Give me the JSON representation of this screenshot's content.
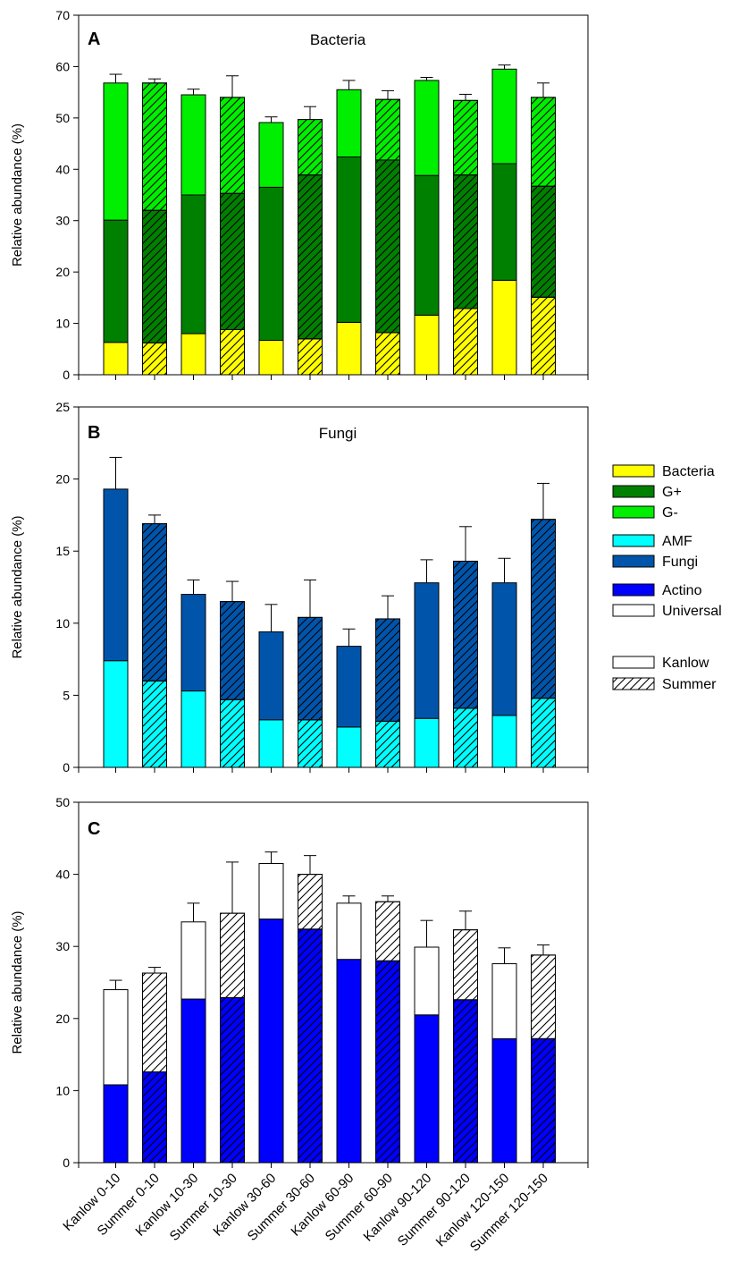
{
  "chart_data": [
    {
      "type": "bar",
      "stacked": true,
      "panel": "A",
      "title": "Bacteria",
      "ylabel": "Relative abundance (%)",
      "ylim": [
        0,
        70
      ],
      "yticks": [
        0,
        10,
        20,
        30,
        40,
        50,
        60,
        70
      ],
      "categories": [
        "Kanlow 0-10",
        "Summer 0-10",
        "Kanlow 10-30",
        "Summer 10-30",
        "Kanlow 30-60",
        "Summer 30-60",
        "Kanlow 60-90",
        "Summer 60-90",
        "Kanlow 90-120",
        "Summer 90-120",
        "Kanlow 120-150",
        "Summer 120-150"
      ],
      "hatched": [
        false,
        true,
        false,
        true,
        false,
        true,
        false,
        true,
        false,
        true,
        false,
        true
      ],
      "series": [
        {
          "name": "Bacteria",
          "color": "#ffff00",
          "values": [
            6.3,
            6.2,
            8.0,
            8.8,
            6.7,
            7.0,
            10.2,
            8.2,
            11.6,
            12.9,
            18.4,
            15.1
          ]
        },
        {
          "name": "G+",
          "color": "#008000",
          "values": [
            23.8,
            25.8,
            27.0,
            26.5,
            29.8,
            31.9,
            32.2,
            33.6,
            27.2,
            26.0,
            22.7,
            21.6
          ]
        },
        {
          "name": "G-",
          "color": "#00ee00",
          "values": [
            26.7,
            24.8,
            19.5,
            18.7,
            12.6,
            10.8,
            13.1,
            11.8,
            18.5,
            14.5,
            18.4,
            17.3
          ]
        }
      ],
      "errors": [
        1.7,
        0.8,
        1.1,
        4.2,
        1.1,
        2.5,
        1.8,
        1.7,
        0.6,
        1.2,
        0.8,
        2.8
      ]
    },
    {
      "type": "bar",
      "stacked": true,
      "panel": "B",
      "title": "Fungi",
      "ylabel": "Relative abundance (%)",
      "ylim": [
        0,
        25
      ],
      "yticks": [
        0,
        5,
        10,
        15,
        20,
        25
      ],
      "categories": [
        "Kanlow 0-10",
        "Summer 0-10",
        "Kanlow 10-30",
        "Summer 10-30",
        "Kanlow 30-60",
        "Summer 30-60",
        "Kanlow 60-90",
        "Summer 60-90",
        "Kanlow 90-120",
        "Summer 90-120",
        "Kanlow 120-150",
        "Summer 120-150"
      ],
      "hatched": [
        false,
        true,
        false,
        true,
        false,
        true,
        false,
        true,
        false,
        true,
        false,
        true
      ],
      "series": [
        {
          "name": "AMF",
          "color": "#00ffff",
          "values": [
            7.4,
            6.0,
            5.3,
            4.7,
            3.3,
            3.3,
            2.8,
            3.2,
            3.4,
            4.1,
            3.6,
            4.8
          ]
        },
        {
          "name": "Fungi",
          "color": "#0055aa",
          "values": [
            11.9,
            10.9,
            6.7,
            6.8,
            6.1,
            7.1,
            5.6,
            7.1,
            9.4,
            10.2,
            9.2,
            12.4
          ]
        }
      ],
      "errors": [
        2.2,
        0.6,
        1.0,
        1.4,
        1.9,
        2.6,
        1.2,
        1.6,
        1.6,
        2.4,
        1.7,
        2.5
      ]
    },
    {
      "type": "bar",
      "stacked": true,
      "panel": "C",
      "title": "",
      "ylabel": "Relative abundance (%)",
      "ylim": [
        0,
        50
      ],
      "yticks": [
        0,
        10,
        20,
        30,
        40,
        50
      ],
      "categories": [
        "Kanlow 0-10",
        "Summer 0-10",
        "Kanlow 10-30",
        "Summer 10-30",
        "Kanlow 30-60",
        "Summer 30-60",
        "Kanlow 60-90",
        "Summer 60-90",
        "Kanlow 90-120",
        "Summer 90-120",
        "Kanlow 120-150",
        "Summer 120-150"
      ],
      "hatched": [
        false,
        true,
        false,
        true,
        false,
        true,
        false,
        true,
        false,
        true,
        false,
        true
      ],
      "series": [
        {
          "name": "Actino",
          "color": "#0000ff",
          "values": [
            10.8,
            12.6,
            22.7,
            22.9,
            33.8,
            32.4,
            28.2,
            28.0,
            20.5,
            22.6,
            17.2,
            17.2
          ]
        },
        {
          "name": "Universal",
          "color": "#ffffff",
          "values": [
            13.2,
            13.7,
            10.7,
            11.7,
            7.7,
            7.6,
            7.8,
            8.2,
            9.4,
            9.7,
            10.4,
            11.6
          ]
        }
      ],
      "errors": [
        1.3,
        0.8,
        2.6,
        7.1,
        1.6,
        2.6,
        1.0,
        0.8,
        3.7,
        2.6,
        2.2,
        1.4
      ]
    }
  ],
  "legend": {
    "series": [
      {
        "name": "Bacteria",
        "color": "#ffff00"
      },
      {
        "name": "G+",
        "color": "#008000"
      },
      {
        "name": "G-",
        "color": "#00ee00"
      },
      {
        "name": "AMF",
        "color": "#00ffff"
      },
      {
        "name": "Fungi",
        "color": "#0055aa"
      },
      {
        "name": "Actino",
        "color": "#0000ff"
      },
      {
        "name": "Universal",
        "color": "#ffffff"
      }
    ],
    "cultivars": [
      {
        "name": "Kanlow",
        "hatched": false
      },
      {
        "name": "Summer",
        "hatched": true
      }
    ]
  }
}
